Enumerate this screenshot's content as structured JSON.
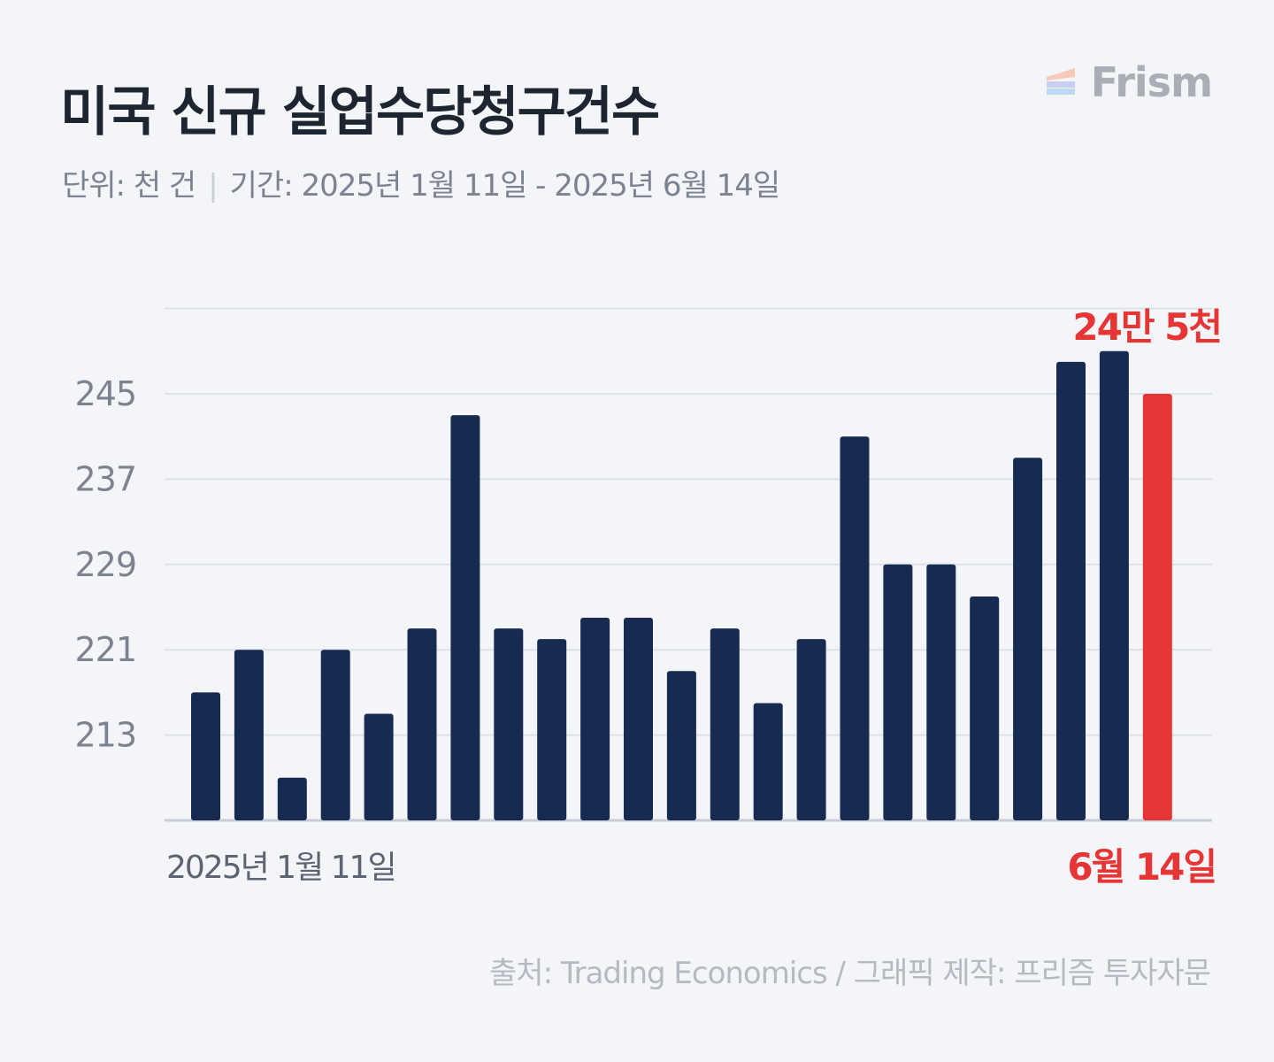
{
  "title": "미국 신규 실업수당청구건수",
  "subtitle": {
    "unit": "단위: 천 건",
    "separator": "|",
    "period": "기간: 2025년 1월 11일 - 2025년 6월 14일"
  },
  "brand": {
    "name": "Frism",
    "logo_icon": "stacked-bars-logo-icon"
  },
  "footer": "출처: Trading Economics  / 그래픽 제작: 프리즘 투자자문",
  "colors": {
    "bar": "#172a4f",
    "highlight": "#e53535",
    "grid": "#dde1e8",
    "axis_text": "#7b8390"
  },
  "chart_data": {
    "type": "bar",
    "title": "미국 신규 실업수당청구건수",
    "ylabel": "",
    "xlabel": "",
    "y_ticks": [
      "213",
      "221",
      "229",
      "237",
      "245"
    ],
    "ylim": [
      205,
      253
    ],
    "grid": true,
    "x_labels": {
      "first": "2025년 1월 11일",
      "last": "6월 14일"
    },
    "values": [
      217,
      221,
      209,
      221,
      215,
      223,
      243,
      223,
      222,
      224,
      224,
      219,
      223,
      216,
      222,
      241,
      229,
      229,
      226,
      239,
      248,
      249,
      245
    ],
    "highlight_index": 22,
    "highlight_label": "24만 5천"
  }
}
